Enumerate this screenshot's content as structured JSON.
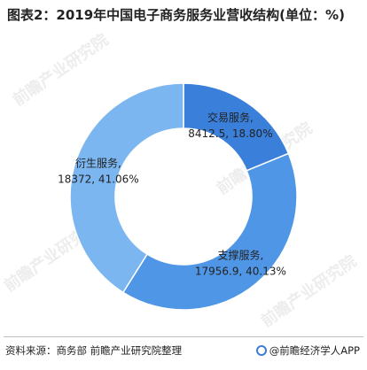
{
  "title": "图表2：2019年中国电子商务服务业营收结构(单位：%)",
  "chart_data": {
    "type": "pie",
    "donut": true,
    "title": "图表2：2019年中国电子商务服务业营收结构(单位：%)",
    "slices": [
      {
        "name": "交易服务",
        "value": 8412.5,
        "percent": "18.80%",
        "color": "#3a7fda"
      },
      {
        "name": "支撑服务",
        "value": 17956.9,
        "percent": "40.13%",
        "color": "#4f96e6"
      },
      {
        "name": "衍生服务",
        "value": 18372,
        "percent": "41.06%",
        "color": "#7bb6f0"
      }
    ],
    "labels": [
      {
        "line1": "交易服务,",
        "line2": "8412.5, 18.80%"
      },
      {
        "line1": "支撑服务,",
        "line2": "17956.9, 40.13%"
      },
      {
        "line1": "衍生服务,",
        "line2": "18372, 41.06%"
      }
    ]
  },
  "footer": {
    "source": "资料来源：商务部 前瞻产业研究院整理",
    "brand": "@前瞻经济学人APP"
  },
  "watermark": "前瞻产业研究院"
}
